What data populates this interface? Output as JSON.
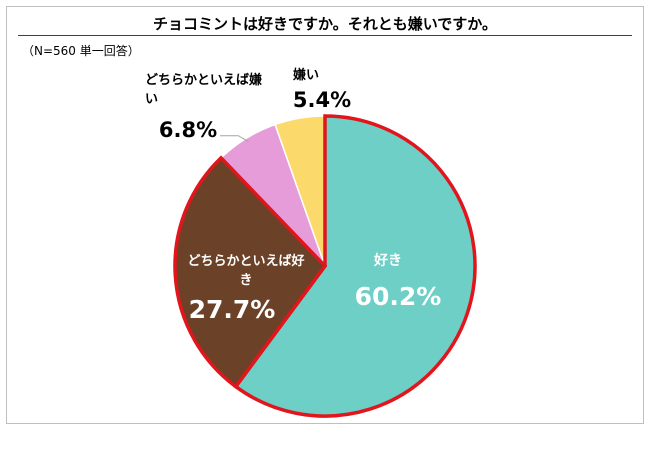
{
  "chart_data": {
    "type": "pie",
    "title": "チョコミントは好きですか。それとも嫌いですか。",
    "note": "（N=560 単一回答）",
    "slices": [
      {
        "label": "好き",
        "value": 60.2,
        "value_label": "60.2%",
        "color": "#6ecfc7",
        "highlighted": true
      },
      {
        "label": "どちらかといえば好き",
        "value": 27.7,
        "value_label": "27.7%",
        "color": "#6b4228",
        "highlighted": true
      },
      {
        "label": "どちらかといえば嫌い",
        "value": 6.8,
        "value_label": "6.8%",
        "color": "#e59cd9",
        "highlighted": false
      },
      {
        "label": "嫌い",
        "value": 5.4,
        "value_label": "5.4%",
        "color": "#fbd96a",
        "highlighted": false
      }
    ],
    "highlight_color": "#e0161c",
    "start_angle": "12 o'clock",
    "direction": "clockwise"
  }
}
